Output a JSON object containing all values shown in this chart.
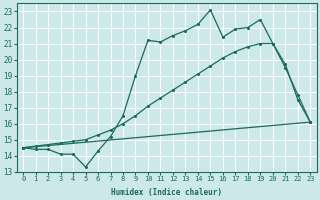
{
  "xlabel": "Humidex (Indice chaleur)",
  "ylabel": "",
  "bg_color": "#cce8e8",
  "grid_color": "#ffffff",
  "line_color": "#1a6b5a",
  "xlim": [
    -0.5,
    23.5
  ],
  "ylim": [
    13.0,
    23.5
  ],
  "yticks": [
    13,
    14,
    15,
    16,
    17,
    18,
    19,
    20,
    21,
    22,
    23
  ],
  "xticks": [
    0,
    1,
    2,
    3,
    4,
    5,
    6,
    7,
    8,
    9,
    10,
    11,
    12,
    13,
    14,
    15,
    16,
    17,
    18,
    19,
    20,
    21,
    22,
    23
  ],
  "line1_x": [
    0,
    1,
    2,
    3,
    4,
    5,
    6,
    7,
    8,
    9,
    10,
    11,
    12,
    13,
    14,
    15,
    16,
    17,
    18,
    19,
    20,
    21,
    22,
    23
  ],
  "line1_y": [
    14.5,
    14.4,
    14.4,
    14.1,
    14.1,
    13.3,
    14.3,
    15.2,
    16.5,
    19.0,
    21.2,
    21.1,
    21.5,
    21.8,
    22.2,
    23.1,
    21.4,
    21.9,
    22.0,
    22.5,
    21.0,
    19.7,
    17.5,
    16.1
  ],
  "line2_x": [
    0,
    1,
    2,
    3,
    4,
    5,
    6,
    7,
    8,
    9,
    10,
    11,
    12,
    13,
    14,
    15,
    16,
    17,
    18,
    19,
    20,
    21,
    22,
    23
  ],
  "line2_y": [
    14.5,
    14.6,
    14.7,
    14.8,
    14.9,
    15.0,
    15.3,
    15.6,
    16.0,
    16.5,
    17.1,
    17.6,
    18.1,
    18.6,
    19.1,
    19.6,
    20.1,
    20.5,
    20.8,
    21.0,
    21.0,
    19.5,
    17.8,
    16.1
  ],
  "line3_x": [
    0,
    23
  ],
  "line3_y": [
    14.5,
    16.1
  ]
}
